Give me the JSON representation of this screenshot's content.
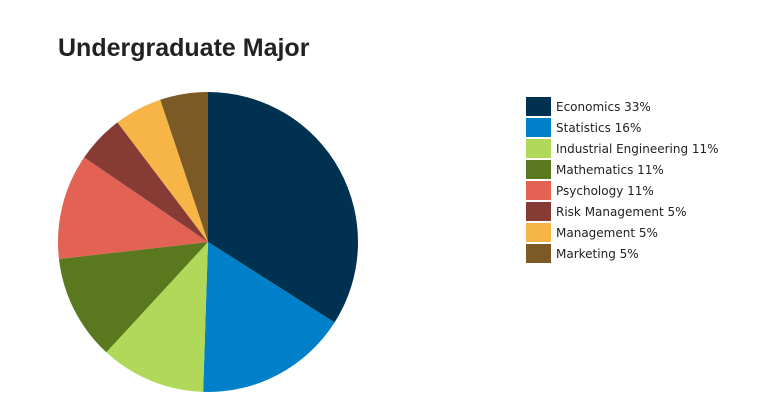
{
  "chart_data": {
    "type": "pie",
    "title": "Undergraduate Major",
    "legend_position": "right",
    "slices": [
      {
        "label": "Economics 33%",
        "category": "Economics",
        "value": 33,
        "color": "#003150"
      },
      {
        "label": "Statistics 16%",
        "category": "Statistics",
        "value": 16,
        "color": "#0080C8"
      },
      {
        "label": "Industrial Engineering 11%",
        "category": "Industrial Engineering",
        "value": 11,
        "color": "#B0D95A"
      },
      {
        "label": "Mathematics 11%",
        "category": "Mathematics",
        "value": 11,
        "color": "#5A781E"
      },
      {
        "label": "Psychology 11%",
        "category": "Psychology",
        "value": 11,
        "color": "#E26253"
      },
      {
        "label": "Risk Management 5%",
        "category": "Risk Management",
        "value": 5,
        "color": "#873B35"
      },
      {
        "label": "Management 5%",
        "category": "Management",
        "value": 5,
        "color": "#F7B547"
      },
      {
        "label": "Marketing 5%",
        "category": "Marketing",
        "value": 5,
        "color": "#7B5A25"
      }
    ]
  }
}
